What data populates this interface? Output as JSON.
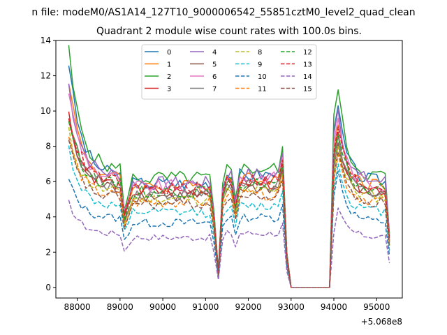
{
  "chart_data": {
    "type": "line",
    "suptitle": "n file: modeM0/AS1A14_127T10_9000006542_55851cztM0_level2_quad_clean",
    "title": "Quadrant 2 module wise count rates with 100.0s bins.",
    "xlabel": "",
    "ylabel": "",
    "offset_text": "+5.068e8",
    "xlim": [
      87500,
      95600
    ],
    "ylim": [
      -0.6,
      14
    ],
    "xticks": [
      88000,
      89000,
      90000,
      91000,
      92000,
      93000,
      94000,
      95000
    ],
    "yticks": [
      0,
      2,
      4,
      6,
      8,
      10,
      12,
      14
    ],
    "xticklabels": [
      "88000",
      "89000",
      "90000",
      "91000",
      "92000",
      "93000",
      "94000",
      "95000"
    ],
    "yticklabels": [
      "0",
      "2",
      "4",
      "6",
      "8",
      "10",
      "12",
      "14"
    ],
    "legend_position": "upper center",
    "legend_columns": 4,
    "x": {
      "start": 87800,
      "step": 100,
      "count": 76
    },
    "series": [
      {
        "name": "0",
        "color": "#1f77b4",
        "style": "solid",
        "scale": 1.0,
        "start_peak": 12.8,
        "flare_peak": 10.3
      },
      {
        "name": "1",
        "color": "#ff7f0e",
        "style": "solid",
        "scale": 0.97,
        "start_peak": 11.9,
        "flare_peak": 9.2
      },
      {
        "name": "2",
        "color": "#2ca02c",
        "style": "solid",
        "scale": 1.05,
        "start_peak": 13.4,
        "flare_peak": 11.2
      },
      {
        "name": "3",
        "color": "#d62728",
        "style": "solid",
        "scale": 0.92,
        "start_peak": 9.8,
        "flare_peak": 8.8
      },
      {
        "name": "4",
        "color": "#9467bd",
        "style": "solid",
        "scale": 1.0,
        "start_peak": 11.5,
        "flare_peak": 10.1
      },
      {
        "name": "5",
        "color": "#8c564b",
        "style": "solid",
        "scale": 0.88,
        "start_peak": 9.5,
        "flare_peak": 8.2
      },
      {
        "name": "6",
        "color": "#e377c2",
        "style": "solid",
        "scale": 0.97,
        "start_peak": 11.2,
        "flare_peak": 9.6
      },
      {
        "name": "7",
        "color": "#7f7f7f",
        "style": "solid",
        "scale": 0.9,
        "start_peak": 9.9,
        "flare_peak": 8.6
      },
      {
        "name": "8",
        "color": "#bcbd22",
        "style": "dashed",
        "scale": 0.85,
        "start_peak": 8.8,
        "flare_peak": 8.0
      },
      {
        "name": "9",
        "color": "#17becf",
        "style": "dashed",
        "scale": 0.72,
        "start_peak": 7.9,
        "flare_peak": 7.0
      },
      {
        "name": "10",
        "color": "#1f77b4",
        "style": "dashed",
        "scale": 0.62,
        "start_peak": 6.1,
        "flare_peak": 6.6
      },
      {
        "name": "11",
        "color": "#ff7f0e",
        "style": "dashed",
        "scale": 0.82,
        "start_peak": 8.6,
        "flare_peak": 7.5
      },
      {
        "name": "12",
        "color": "#2ca02c",
        "style": "dashed",
        "scale": 0.92,
        "start_peak": 9.6,
        "flare_peak": 8.7
      },
      {
        "name": "13",
        "color": "#d62728",
        "style": "dashed",
        "scale": 0.95,
        "start_peak": 9.9,
        "flare_peak": 9.1
      },
      {
        "name": "14",
        "color": "#9467bd",
        "style": "dashed",
        "scale": 0.48,
        "start_peak": 4.8,
        "flare_peak": 4.5
      },
      {
        "name": "15",
        "color": "#8c564b",
        "style": "dashed",
        "scale": 0.8,
        "start_peak": 8.2,
        "flare_peak": 7.7
      }
    ]
  }
}
